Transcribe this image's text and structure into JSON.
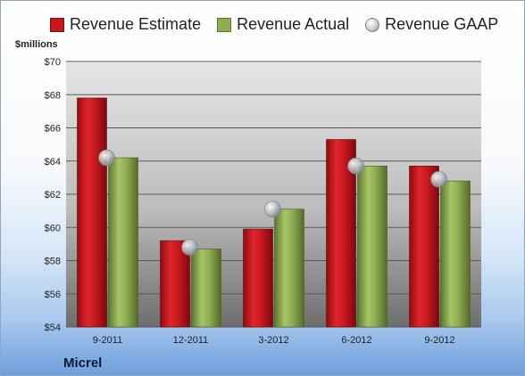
{
  "legend": {
    "estimate": "Revenue Estimate",
    "actual": "Revenue Actual",
    "gaap": "Revenue GAAP"
  },
  "unit_label": "$millions",
  "company": "Micrel",
  "colors": {
    "estimate": "#c8181e",
    "actual": "#8fad52",
    "gaap": "#b7bcc4"
  },
  "chart_data": {
    "type": "bar",
    "categories": [
      "9-2011",
      "12-2011",
      "3-2012",
      "6-2012",
      "9-2012"
    ],
    "series": [
      {
        "name": "Revenue Estimate",
        "values": [
          67.8,
          59.2,
          59.9,
          65.3,
          63.7
        ]
      },
      {
        "name": "Revenue Actual",
        "values": [
          64.2,
          58.7,
          61.1,
          63.7,
          62.8
        ]
      },
      {
        "name": "Revenue GAAP",
        "values": [
          64.2,
          58.8,
          61.1,
          63.7,
          62.9
        ],
        "marker": "sphere"
      }
    ],
    "ylabel": "$millions",
    "ylim": [
      54,
      70
    ],
    "yticks": [
      "$54",
      "$56",
      "$58",
      "$60",
      "$62",
      "$64",
      "$66",
      "$68",
      "$70"
    ],
    "grid": true,
    "legend_position": "top"
  }
}
